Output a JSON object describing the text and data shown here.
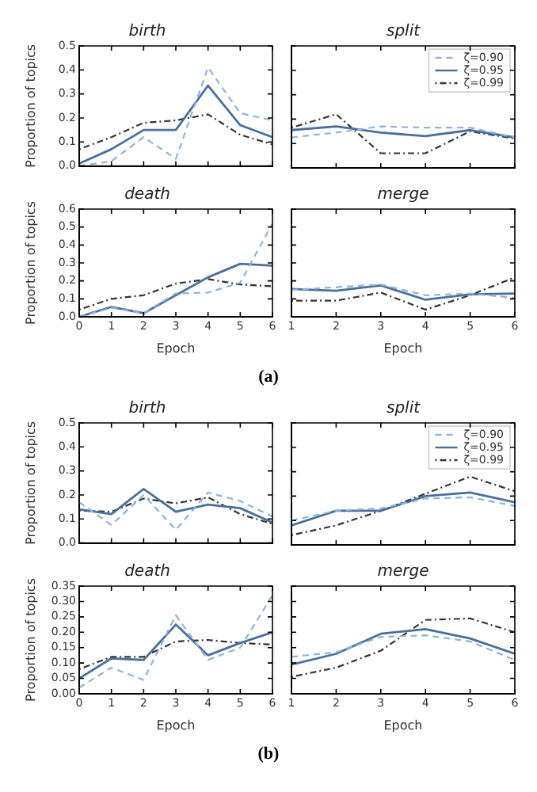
{
  "chart_data": [
    {
      "type": "line",
      "title": "birth",
      "ylabel": "Proportion of topics",
      "x": [
        0,
        1,
        2,
        3,
        4,
        5,
        6
      ],
      "xlim": [
        0,
        6
      ],
      "xticks": [
        0,
        1,
        2,
        3,
        4,
        5,
        6
      ],
      "ylim": [
        0,
        0.5
      ],
      "yticks": [
        {
          "value": 0,
          "label": "0.0"
        },
        0.1,
        0.2,
        0.3,
        0.4,
        0.5
      ],
      "tick_labels": "y",
      "series": [
        {
          "color": "#8fb3d9",
          "line_style": "dashed",
          "values": [
            0.0,
            0.02,
            0.12,
            0.03,
            0.41,
            0.22,
            0.19
          ]
        },
        {
          "color": "#4a6f9a",
          "line_style": "solid",
          "values": [
            0.01,
            0.07,
            0.15,
            0.15,
            0.335,
            0.17,
            0.12
          ]
        },
        {
          "color": "#333333",
          "line_style": "dotted",
          "values": [
            0.07,
            0.12,
            0.18,
            0.19,
            0.215,
            0.13,
            0.09
          ]
        }
      ]
    },
    {
      "type": "line",
      "title": "split",
      "x": [
        1,
        2,
        3,
        4,
        5,
        6
      ],
      "xlim": [
        1,
        6
      ],
      "xticks": [
        1,
        2,
        3,
        4,
        5,
        6
      ],
      "ylim": [
        0,
        0.5
      ],
      "yticks": [
        0,
        0.1,
        0.2,
        0.3,
        0.4,
        0.5
      ],
      "tick_labels": false,
      "legend": "top right",
      "series": [
        {
          "name": "ζ=0.90",
          "color": "#8fb3d9",
          "line_style": "dashed",
          "values": [
            0.125,
            0.145,
            0.17,
            0.165,
            0.165,
            0.125
          ]
        },
        {
          "name": "ζ=0.95",
          "color": "#4a6f9a",
          "line_style": "solid",
          "values": [
            0.155,
            0.17,
            0.145,
            0.13,
            0.155,
            0.125
          ]
        },
        {
          "name": "ζ=0.99",
          "color": "#333333",
          "line_style": "dotted",
          "values": [
            0.165,
            0.22,
            0.06,
            0.06,
            0.15,
            0.12
          ]
        }
      ]
    },
    {
      "type": "line",
      "title": "death",
      "xlabel": "Epoch",
      "ylabel": "Proportion of topics",
      "x": [
        0,
        1,
        2,
        3,
        4,
        5,
        6
      ],
      "xlim": [
        0,
        6
      ],
      "xticks": [
        0,
        1,
        2,
        3,
        4,
        5,
        6
      ],
      "ylim": [
        0,
        0.6
      ],
      "yticks": [
        {
          "value": 0,
          "label": "0.0"
        },
        0.1,
        0.2,
        0.3,
        0.4,
        0.5,
        0.6
      ],
      "annotations": [
        "(a)"
      ],
      "series": [
        {
          "color": "#8fb3d9",
          "line_style": "dashed",
          "values": [
            0.0,
            0.05,
            0.02,
            0.13,
            0.135,
            0.19,
            0.52
          ]
        },
        {
          "color": "#4a6f9a",
          "line_style": "solid",
          "values": [
            0.0,
            0.055,
            0.02,
            0.12,
            0.22,
            0.295,
            0.285
          ]
        },
        {
          "color": "#333333",
          "line_style": "dotted",
          "values": [
            0.04,
            0.1,
            0.12,
            0.185,
            0.21,
            0.18,
            0.17
          ]
        }
      ]
    },
    {
      "type": "line",
      "title": "merge",
      "xlabel": "Epoch",
      "x": [
        1,
        2,
        3,
        4,
        5,
        6
      ],
      "xlim": [
        1,
        6
      ],
      "xticks": [
        1,
        2,
        3,
        4,
        5,
        6
      ],
      "ylim": [
        0,
        0.6
      ],
      "yticks": [
        0,
        0.1,
        0.2,
        0.3,
        0.4,
        0.5,
        0.6
      ],
      "tick_labels": "x",
      "series": [
        {
          "color": "#8fb3d9",
          "line_style": "dashed",
          "values": [
            0.15,
            0.165,
            0.18,
            0.12,
            0.13,
            0.105
          ]
        },
        {
          "color": "#4a6f9a",
          "line_style": "solid",
          "values": [
            0.155,
            0.145,
            0.175,
            0.095,
            0.125,
            0.13
          ]
        },
        {
          "color": "#333333",
          "line_style": "dotted",
          "values": [
            0.09,
            0.09,
            0.135,
            0.04,
            0.12,
            0.22
          ]
        }
      ]
    },
    {
      "type": "line",
      "title": "birth",
      "ylabel": "Proportion of topics",
      "x": [
        0,
        1,
        2,
        3,
        4,
        5,
        6
      ],
      "xlim": [
        0,
        6
      ],
      "xticks": [
        0,
        1,
        2,
        3,
        4,
        5,
        6
      ],
      "ylim": [
        0,
        0.5
      ],
      "yticks": [
        {
          "value": 0,
          "label": "0.0"
        },
        0.1,
        0.2,
        0.3,
        0.4,
        0.5
      ],
      "tick_labels": "y",
      "series": [
        {
          "color": "#8fb3d9",
          "line_style": "dashed",
          "values": [
            0.17,
            0.075,
            0.2,
            0.055,
            0.21,
            0.175,
            0.11
          ]
        },
        {
          "color": "#4a6f9a",
          "line_style": "solid",
          "values": [
            0.14,
            0.12,
            0.225,
            0.13,
            0.16,
            0.145,
            0.085
          ]
        },
        {
          "color": "#333333",
          "line_style": "dotted",
          "values": [
            0.135,
            0.13,
            0.185,
            0.165,
            0.19,
            0.12,
            0.08
          ]
        }
      ]
    },
    {
      "type": "line",
      "title": "split",
      "x": [
        1,
        2,
        3,
        4,
        5,
        6
      ],
      "xlim": [
        1,
        6
      ],
      "xticks": [
        1,
        2,
        3,
        4,
        5,
        6
      ],
      "ylim": [
        0,
        0.5
      ],
      "yticks": [
        0,
        0.1,
        0.2,
        0.3,
        0.4,
        0.5
      ],
      "tick_labels": false,
      "legend": "top right",
      "series": [
        {
          "name": "ζ=0.90",
          "color": "#8fb3d9",
          "line_style": "dashed",
          "values": [
            0.1,
            0.14,
            0.15,
            0.19,
            0.195,
            0.16
          ]
        },
        {
          "name": "ζ=0.95",
          "color": "#4a6f9a",
          "line_style": "solid",
          "values": [
            0.08,
            0.14,
            0.14,
            0.2,
            0.215,
            0.175
          ]
        },
        {
          "name": "ζ=0.99",
          "color": "#333333",
          "line_style": "dotted",
          "values": [
            0.04,
            0.08,
            0.14,
            0.21,
            0.28,
            0.22
          ]
        }
      ]
    },
    {
      "type": "line",
      "title": "death",
      "xlabel": "Epoch",
      "ylabel": "Proportion of topics",
      "x": [
        0,
        1,
        2,
        3,
        4,
        5,
        6
      ],
      "xlim": [
        0,
        6
      ],
      "xticks": [
        0,
        1,
        2,
        3,
        4,
        5,
        6
      ],
      "ylim": [
        0,
        0.35
      ],
      "yticks": [
        {
          "value": 0,
          "label": "0.00"
        },
        {
          "value": 0.05,
          "label": "0.05"
        },
        {
          "value": 0.1,
          "label": "0.10"
        },
        {
          "value": 0.15,
          "label": "0.15"
        },
        {
          "value": 0.2,
          "label": "0.20"
        },
        {
          "value": 0.25,
          "label": "0.25"
        },
        {
          "value": 0.3,
          "label": "0.30"
        },
        {
          "value": 0.35,
          "label": "0.35"
        }
      ],
      "annotations": [
        "(b)"
      ],
      "series": [
        {
          "color": "#8fb3d9",
          "line_style": "dashed",
          "values": [
            0.02,
            0.085,
            0.045,
            0.255,
            0.11,
            0.15,
            0.32
          ]
        },
        {
          "color": "#4a6f9a",
          "line_style": "solid",
          "values": [
            0.05,
            0.115,
            0.11,
            0.225,
            0.125,
            0.165,
            0.2
          ]
        },
        {
          "color": "#333333",
          "line_style": "dotted",
          "values": [
            0.08,
            0.12,
            0.12,
            0.17,
            0.175,
            0.165,
            0.16
          ]
        }
      ]
    },
    {
      "type": "line",
      "title": "merge",
      "xlabel": "Epoch",
      "x": [
        1,
        2,
        3,
        4,
        5,
        6
      ],
      "xlim": [
        1,
        6
      ],
      "xticks": [
        1,
        2,
        3,
        4,
        5,
        6
      ],
      "ylim": [
        0,
        0.35
      ],
      "yticks": [
        0,
        0.05,
        0.1,
        0.15,
        0.2,
        0.25,
        0.3,
        0.35
      ],
      "tick_labels": "x",
      "series": [
        {
          "color": "#8fb3d9",
          "line_style": "dashed",
          "values": [
            0.12,
            0.135,
            0.185,
            0.19,
            0.17,
            0.11
          ]
        },
        {
          "color": "#4a6f9a",
          "line_style": "solid",
          "values": [
            0.095,
            0.13,
            0.195,
            0.21,
            0.18,
            0.13
          ]
        },
        {
          "color": "#333333",
          "line_style": "dotted",
          "values": [
            0.055,
            0.085,
            0.14,
            0.24,
            0.245,
            0.2
          ]
        }
      ]
    }
  ]
}
